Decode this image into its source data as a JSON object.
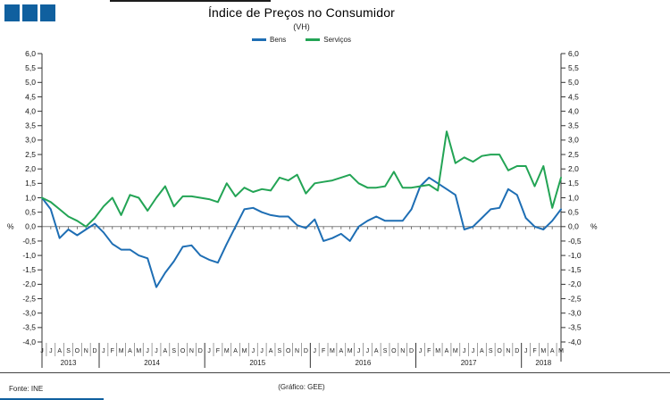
{
  "header": {
    "title": "Índice de Preços no Consumidor",
    "subtitle": "(VH)"
  },
  "legend": [
    {
      "label": "Bens",
      "color": "#1E6EB4"
    },
    {
      "label": "Serviços",
      "color": "#23A455"
    }
  ],
  "footer": {
    "source": "Fonte: INE",
    "credit": "(Gráfico: GEE)"
  },
  "colors": {
    "logo": "#10609F",
    "axis": "#333333",
    "zero_line": "#808080",
    "bens": "#1E6EB4",
    "servicos": "#23A455"
  },
  "chart_data": {
    "type": "line",
    "title": "Índice de Preços no Consumidor",
    "subtitle": "(VH)",
    "unit": "%",
    "ylim": [
      -4.0,
      6.0
    ],
    "ytick_step": 0.5,
    "grid": "zero-line-only",
    "legend_position": "top-center",
    "x_months": [
      "J",
      "J",
      "A",
      "S",
      "O",
      "N",
      "D",
      "J",
      "F",
      "M",
      "A",
      "M",
      "J",
      "J",
      "A",
      "S",
      "O",
      "N",
      "D",
      "J",
      "F",
      "M",
      "A",
      "M",
      "J",
      "J",
      "A",
      "S",
      "O",
      "N",
      "D",
      "J",
      "F",
      "M",
      "A",
      "M",
      "J",
      "J",
      "A",
      "S",
      "O",
      "N",
      "D",
      "J",
      "F",
      "M",
      "A",
      "M",
      "J",
      "J",
      "A",
      "S",
      "O",
      "N",
      "D",
      "J",
      "F",
      "M",
      "A",
      "M"
    ],
    "year_groups": [
      {
        "label": "2013",
        "months": 7
      },
      {
        "label": "2014",
        "months": 12
      },
      {
        "label": "2015",
        "months": 12
      },
      {
        "label": "2016",
        "months": 12
      },
      {
        "label": "2017",
        "months": 12
      },
      {
        "label": "2018",
        "months": 5
      }
    ],
    "series": [
      {
        "name": "Bens",
        "color": "#1E6EB4",
        "values": [
          1.0,
          0.6,
          -0.4,
          -0.1,
          -0.3,
          -0.1,
          0.1,
          -0.2,
          -0.6,
          -0.8,
          -0.8,
          -1.0,
          -1.1,
          -2.1,
          -1.6,
          -1.2,
          -0.7,
          -0.65,
          -1.0,
          -1.15,
          -1.25,
          -0.6,
          0.0,
          0.6,
          0.65,
          0.5,
          0.4,
          0.35,
          0.35,
          0.05,
          -0.05,
          0.25,
          -0.5,
          -0.4,
          -0.25,
          -0.5,
          0.0,
          0.2,
          0.35,
          0.2,
          0.2,
          0.2,
          0.6,
          1.4,
          1.7,
          1.5,
          1.3,
          1.1,
          -0.1,
          0.0,
          0.3,
          0.6,
          0.65,
          1.3,
          1.1,
          0.3,
          0.0,
          -0.1,
          0.2,
          0.6
        ]
      },
      {
        "name": "Serviços",
        "color": "#23A455",
        "values": [
          1.0,
          0.85,
          0.6,
          0.35,
          0.2,
          0.0,
          0.3,
          0.7,
          1.0,
          0.4,
          1.1,
          1.0,
          0.55,
          1.0,
          1.4,
          0.7,
          1.05,
          1.05,
          1.0,
          0.95,
          0.85,
          1.5,
          1.05,
          1.35,
          1.2,
          1.3,
          1.25,
          1.7,
          1.6,
          1.8,
          1.15,
          1.5,
          1.55,
          1.6,
          1.7,
          1.8,
          1.5,
          1.35,
          1.35,
          1.4,
          1.9,
          1.35,
          1.35,
          1.4,
          1.45,
          1.25,
          3.3,
          2.2,
          2.4,
          2.25,
          2.45,
          2.5,
          2.5,
          1.95,
          2.1,
          2.1,
          1.4,
          2.1,
          0.65,
          1.7
        ]
      }
    ]
  }
}
